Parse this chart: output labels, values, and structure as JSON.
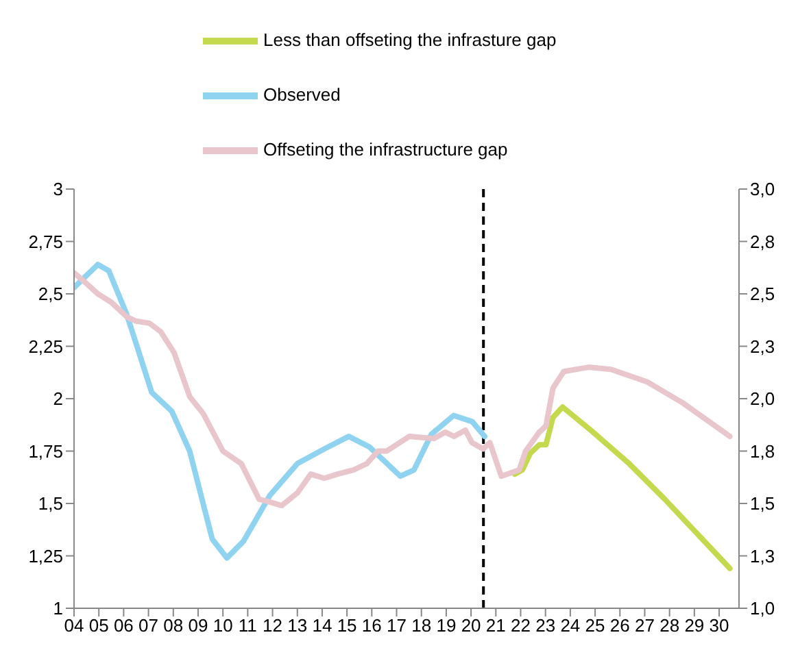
{
  "chart_data": {
    "type": "line",
    "legend": "top",
    "marker": "none",
    "line_style": "solid",
    "grid": false,
    "xlim": [
      2004,
      2030.8
    ],
    "xticks": [
      {
        "value": 2004,
        "label": "04"
      },
      {
        "value": 2005,
        "label": "05"
      },
      {
        "value": 2006,
        "label": "06"
      },
      {
        "value": 2007,
        "label": "07"
      },
      {
        "value": 2008,
        "label": "08"
      },
      {
        "value": 2009,
        "label": "09"
      },
      {
        "value": 2010,
        "label": "10"
      },
      {
        "value": 2011,
        "label": "11"
      },
      {
        "value": 2012,
        "label": "12"
      },
      {
        "value": 2013,
        "label": "13"
      },
      {
        "value": 2014,
        "label": "14"
      },
      {
        "value": 2015,
        "label": "15"
      },
      {
        "value": 2016,
        "label": "16"
      },
      {
        "value": 2017,
        "label": "17"
      },
      {
        "value": 2018,
        "label": "18"
      },
      {
        "value": 2019,
        "label": "19"
      },
      {
        "value": 2020,
        "label": "20"
      },
      {
        "value": 2021,
        "label": "21"
      },
      {
        "value": 2022,
        "label": "22"
      },
      {
        "value": 2023,
        "label": "23"
      },
      {
        "value": 2024,
        "label": "24"
      },
      {
        "value": 2025,
        "label": "25"
      },
      {
        "value": 2026,
        "label": "26"
      },
      {
        "value": 2027,
        "label": "27"
      },
      {
        "value": 2028,
        "label": "28"
      },
      {
        "value": 2029,
        "label": "29"
      },
      {
        "value": 2030,
        "label": "30"
      }
    ],
    "ylim": [
      1,
      3
    ],
    "yticks": [
      1,
      {
        "value": 1.25,
        "label": "1,25"
      },
      {
        "value": 1.5,
        "label": "1,5"
      },
      {
        "value": 1.75,
        "label": "1,75"
      },
      2,
      {
        "value": 2.25,
        "label": "2,25"
      },
      {
        "value": 2.5,
        "label": "2,5"
      },
      {
        "value": 2.75,
        "label": "2,75"
      },
      3
    ],
    "y2lim": [
      1,
      3
    ],
    "y2ticks": [
      {
        "value": 1,
        "label": "1,0"
      },
      {
        "value": 1.25,
        "label": "1,3"
      },
      {
        "value": 1.5,
        "label": "1,5"
      },
      {
        "value": 1.75,
        "label": "1,8"
      },
      {
        "value": 2,
        "label": "2,0"
      },
      {
        "value": 2.25,
        "label": "2,3"
      },
      {
        "value": 2.5,
        "label": "2,5"
      },
      {
        "value": 2.75,
        "label": "2,8"
      },
      {
        "value": 3,
        "label": "3,0"
      }
    ],
    "ref_lines": [
      {
        "axis": "x",
        "value": 2020.5,
        "color": "#000000",
        "line_style": "dashed"
      }
    ],
    "series": [
      {
        "name": "Observed",
        "color": "#8fd3f0",
        "x": [
          2004,
          2004.96,
          2005.4,
          2006.13,
          2007.13,
          2007.94,
          2008.66,
          2009.57,
          2010.16,
          2010.83,
          2011.9,
          2013.0,
          2014.08,
          2015.07,
          2015.9,
          2017.15,
          2017.7,
          2018.4,
          2019.3,
          2020.05,
          2020.55
        ],
        "values": [
          2.53,
          2.64,
          2.61,
          2.4,
          2.03,
          1.94,
          1.75,
          1.33,
          1.24,
          1.32,
          1.54,
          1.69,
          1.76,
          1.82,
          1.77,
          1.63,
          1.66,
          1.83,
          1.92,
          1.89,
          1.82
        ]
      },
      {
        "name": "Less than offseting the infrasture gap",
        "color": "#c5d94f",
        "x": [
          2021.76,
          2022.07,
          2022.39,
          2022.75,
          2023.02,
          2023.3,
          2023.69,
          2024.92,
          2026.37,
          2027.81,
          2029.08,
          2030.43
        ],
        "values": [
          1.64,
          1.66,
          1.74,
          1.78,
          1.78,
          1.91,
          1.96,
          1.84,
          1.69,
          1.52,
          1.36,
          1.19
        ]
      },
      {
        "name": "Offseting the infrastructure gap",
        "color": "#e8c6cc",
        "x": [
          2004,
          2004.4,
          2004.96,
          2005.5,
          2006.13,
          2006.5,
          2007.04,
          2007.49,
          2008.03,
          2008.66,
          2009.2,
          2010.0,
          2010.74,
          2011.46,
          2011.8,
          2012.37,
          2013.0,
          2013.54,
          2014.08,
          2014.62,
          2015.26,
          2015.8,
          2016.25,
          2016.6,
          2017.51,
          2018.5,
          2018.96,
          2019.32,
          2019.77,
          2020.04,
          2020.49,
          2020.76,
          2021.22,
          2021.94,
          2022.2,
          2022.75,
          2023.02,
          2023.3,
          2023.74,
          2024.74,
          2025.64,
          2027.1,
          2028.53,
          2030.43
        ],
        "values": [
          2.6,
          2.56,
          2.5,
          2.46,
          2.39,
          2.37,
          2.36,
          2.32,
          2.22,
          2.01,
          1.93,
          1.75,
          1.69,
          1.52,
          1.51,
          1.49,
          1.55,
          1.64,
          1.62,
          1.64,
          1.66,
          1.69,
          1.75,
          1.75,
          1.82,
          1.81,
          1.84,
          1.82,
          1.85,
          1.79,
          1.76,
          1.79,
          1.63,
          1.66,
          1.75,
          1.84,
          1.87,
          2.05,
          2.13,
          2.15,
          2.14,
          2.08,
          1.98,
          1.82
        ]
      }
    ]
  }
}
